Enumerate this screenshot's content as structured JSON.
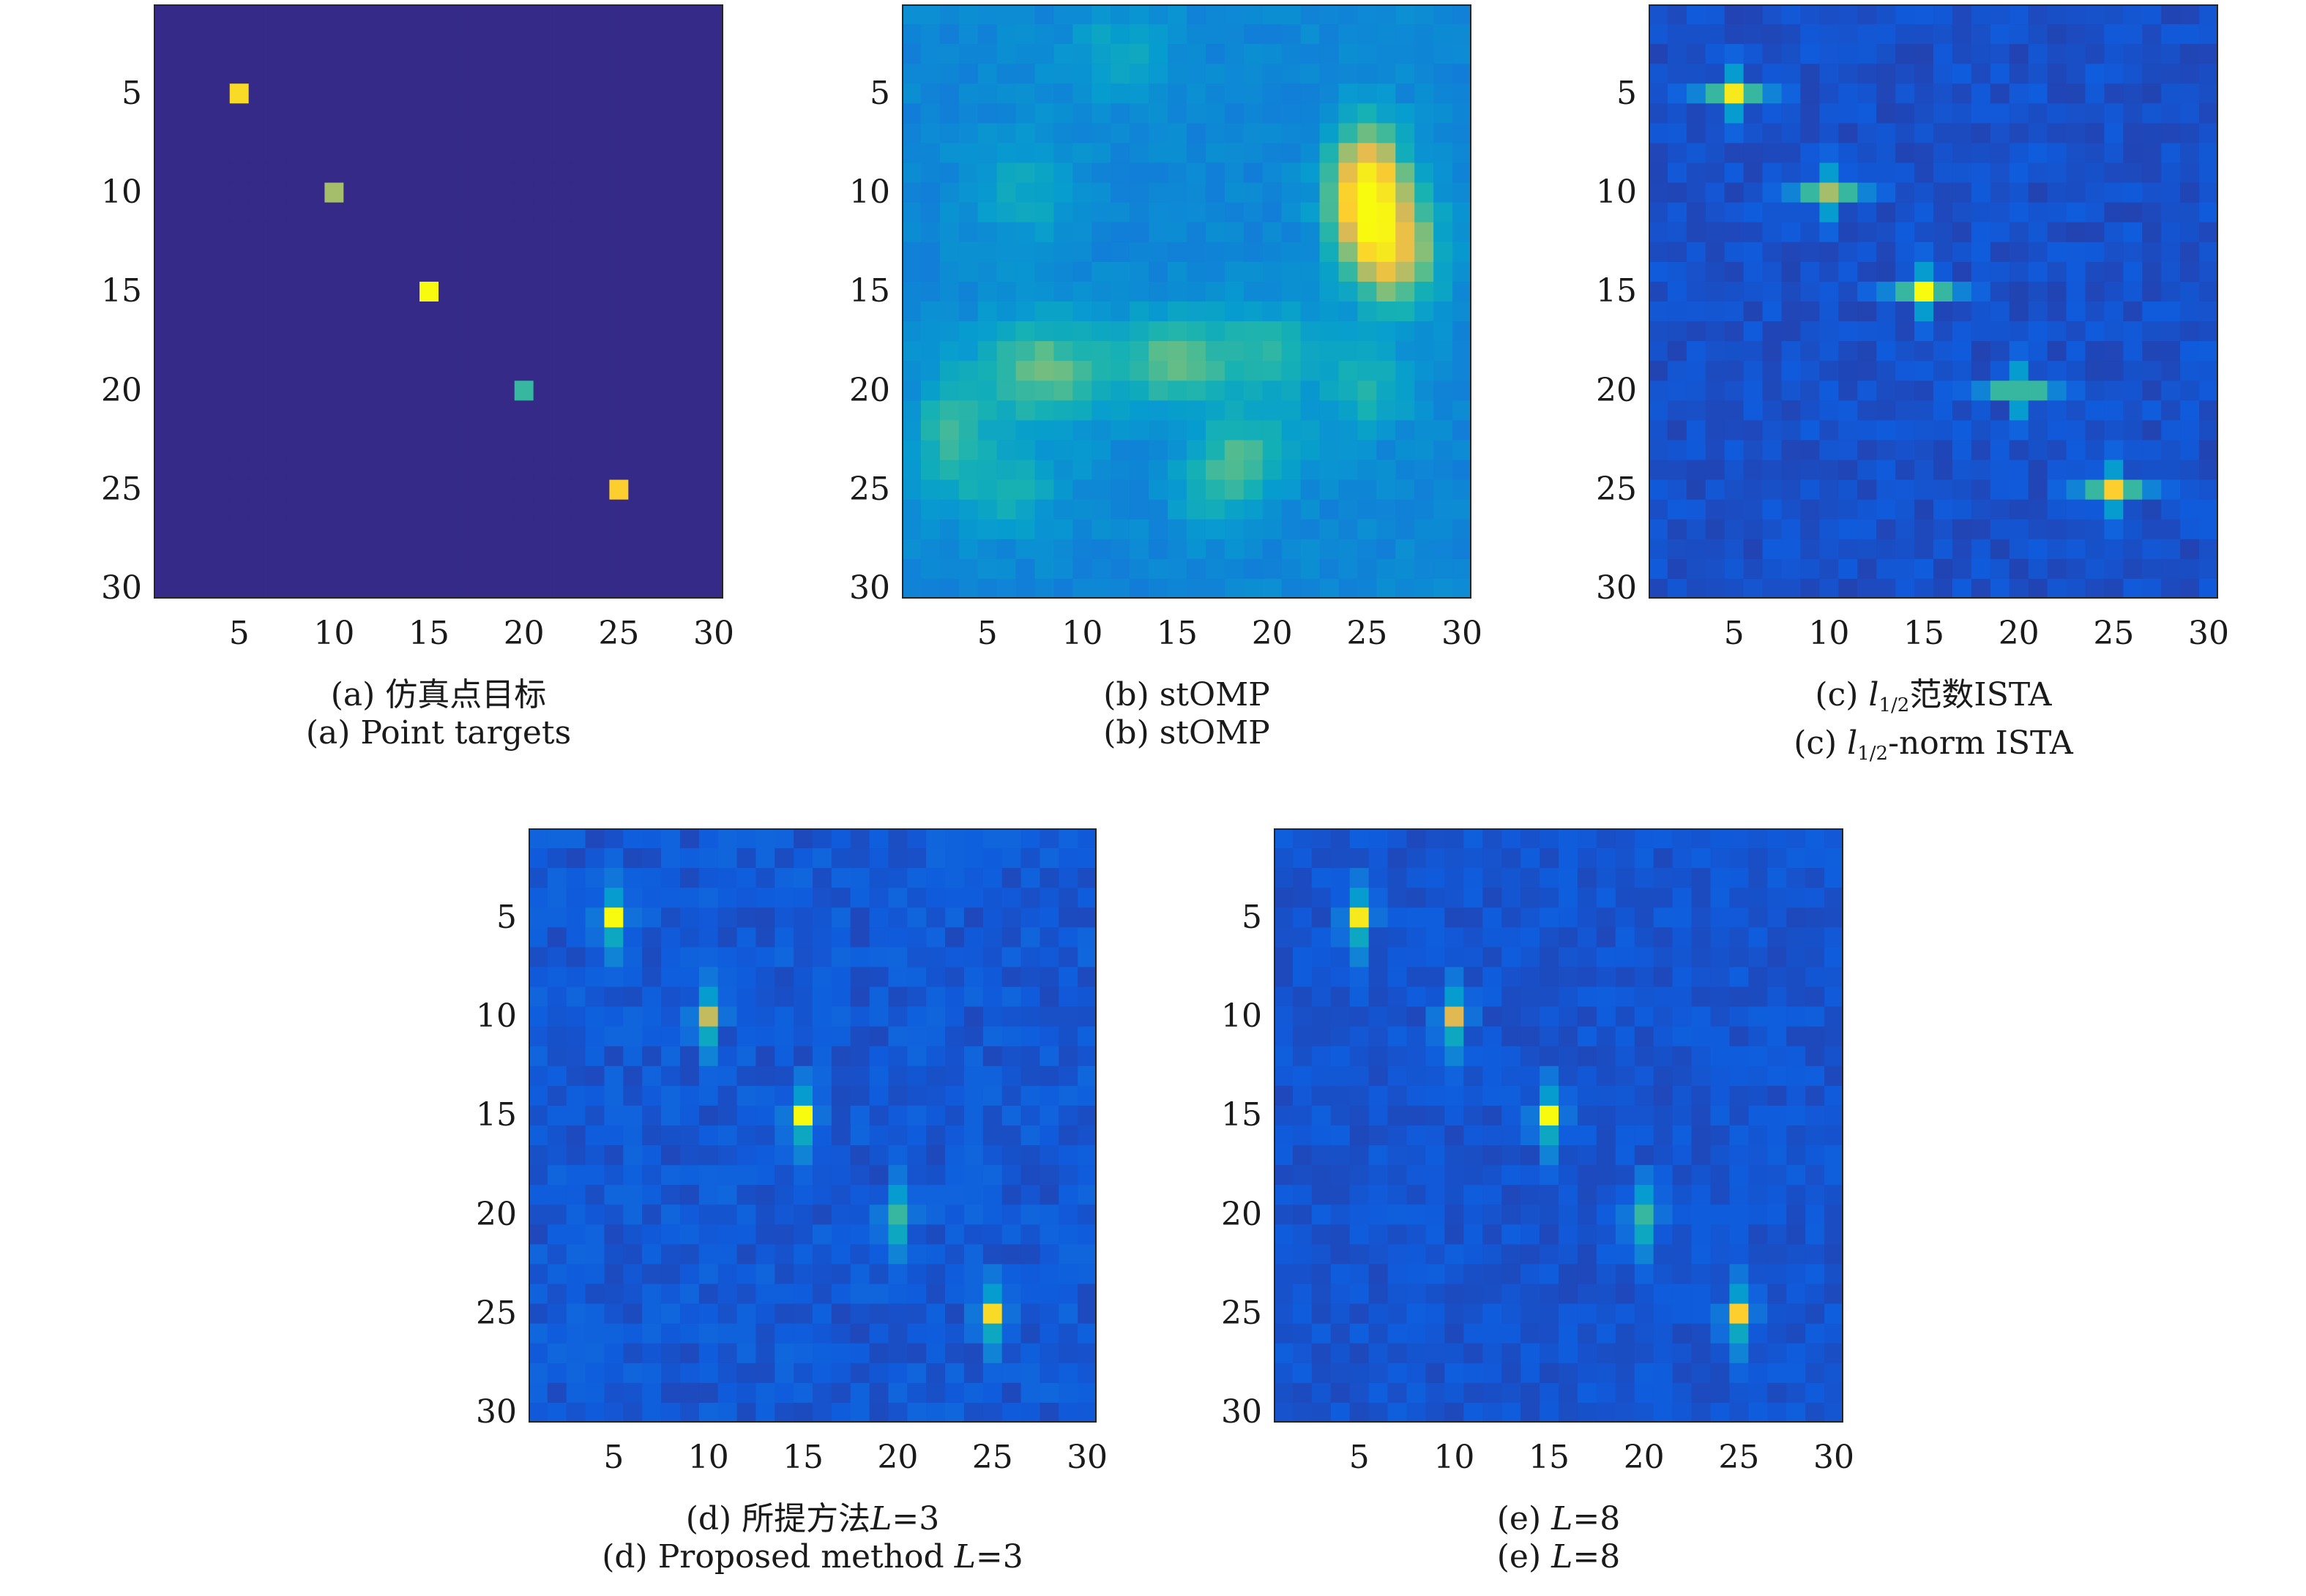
{
  "chart_data": [
    {
      "type": "heatmap",
      "id": "a",
      "caption_cn": "(a) 仿真点目标",
      "caption_en": "(a) Point targets",
      "xticks": [
        5,
        10,
        15,
        20,
        25,
        30
      ],
      "yticks": [
        5,
        10,
        15,
        20,
        25,
        30
      ],
      "xlim": [
        0.5,
        30.5
      ],
      "ylim": [
        0.5,
        30.5
      ],
      "grid": "30x30",
      "background_level": 0.0,
      "noise_level": 0.0,
      "targets": [
        {
          "row": 5,
          "col": 5,
          "value": 0.85
        },
        {
          "row": 10,
          "col": 10,
          "value": 0.6
        },
        {
          "row": 15,
          "col": 15,
          "value": 1.0
        },
        {
          "row": 20,
          "col": 20,
          "value": 0.45
        },
        {
          "row": 25,
          "col": 25,
          "value": 0.8
        }
      ]
    },
    {
      "type": "heatmap",
      "id": "b",
      "caption_cn": "(b) stOMP",
      "caption_en": "(b) stOMP",
      "xticks": [
        5,
        10,
        15,
        20,
        25,
        30
      ],
      "yticks": [
        5,
        10,
        15,
        20,
        25,
        30
      ],
      "xlim": [
        0.5,
        30.5
      ],
      "ylim": [
        0.5,
        30.5
      ],
      "grid": "30x30",
      "background_level": 0.2,
      "noise_level": 0.06,
      "blobs": [
        {
          "row": 10,
          "col": 25,
          "amp": 0.75,
          "sr": 2.2,
          "sc": 1.3
        },
        {
          "row": 13,
          "col": 26.5,
          "amp": 0.45,
          "sr": 2.0,
          "sc": 1.6
        },
        {
          "row": 19,
          "col": 8,
          "amp": 0.28,
          "sr": 2.0,
          "sc": 2.5
        },
        {
          "row": 18.5,
          "col": 15,
          "amp": 0.28,
          "sr": 1.6,
          "sc": 2.0
        },
        {
          "row": 18,
          "col": 20,
          "amp": 0.2,
          "sr": 1.5,
          "sc": 2.0
        },
        {
          "row": 22,
          "col": 3,
          "amp": 0.22,
          "sr": 2.0,
          "sc": 1.3
        },
        {
          "row": 23,
          "col": 19,
          "amp": 0.2,
          "sr": 1.5,
          "sc": 2.0
        },
        {
          "row": 25,
          "col": 6,
          "amp": 0.16,
          "sr": 1.5,
          "sc": 2.0
        },
        {
          "row": 25,
          "col": 17,
          "amp": 0.16,
          "sr": 1.5,
          "sc": 1.5
        },
        {
          "row": 20,
          "col": 25,
          "amp": 0.18,
          "sr": 1.5,
          "sc": 1.5
        },
        {
          "row": 10,
          "col": 7,
          "amp": 0.12,
          "sr": 2.0,
          "sc": 2.0
        },
        {
          "row": 3,
          "col": 12,
          "amp": 0.12,
          "sr": 1.5,
          "sc": 2.0
        }
      ]
    },
    {
      "type": "heatmap",
      "id": "c",
      "caption_cn_parts": [
        "(c) ",
        "l",
        "1/2",
        "范数ISTA"
      ],
      "caption_en_parts": [
        "(c) ",
        "l",
        "1/2",
        "-norm ISTA"
      ],
      "xticks": [
        5,
        10,
        15,
        20,
        25,
        30
      ],
      "yticks": [
        5,
        10,
        15,
        20,
        25,
        30
      ],
      "xlim": [
        0.5,
        30.5
      ],
      "ylim": [
        0.5,
        30.5
      ],
      "grid": "30x30",
      "background_level": 0.05,
      "noise_level": 0.05,
      "crosses": [
        {
          "row": 5,
          "col": 5,
          "value": 0.92
        },
        {
          "row": 10,
          "col": 10,
          "value": 0.6
        },
        {
          "row": 15,
          "col": 15,
          "value": 1.0
        },
        {
          "row": 20,
          "col": 20,
          "value": 0.45
        },
        {
          "row": 25,
          "col": 25,
          "value": 0.8
        }
      ]
    },
    {
      "type": "heatmap",
      "id": "d",
      "caption_cn_parts": [
        "(d) 所提方法",
        "L",
        "=3"
      ],
      "caption_en_parts": [
        "(d) Proposed method ",
        "L",
        "=3"
      ],
      "xticks": [
        5,
        10,
        15,
        20,
        25,
        30
      ],
      "yticks": [
        5,
        10,
        15,
        20,
        25,
        30
      ],
      "xlim": [
        0.5,
        30.5
      ],
      "ylim": [
        0.5,
        30.5
      ],
      "grid": "30x30",
      "background_level": 0.06,
      "noise_level": 0.07,
      "streaks": [
        {
          "row": 5,
          "col": 5,
          "value": 1.0
        },
        {
          "row": 10,
          "col": 10,
          "value": 0.65
        },
        {
          "row": 15,
          "col": 15,
          "value": 1.0
        },
        {
          "row": 20,
          "col": 20,
          "value": 0.45
        },
        {
          "row": 25,
          "col": 25,
          "value": 0.85
        }
      ]
    },
    {
      "type": "heatmap",
      "id": "e",
      "caption_cn_parts": [
        "(e) ",
        "L",
        "=8"
      ],
      "caption_en_parts": [
        "(e) ",
        "L",
        "=8"
      ],
      "xticks": [
        5,
        10,
        15,
        20,
        25,
        30
      ],
      "yticks": [
        5,
        10,
        15,
        20,
        25,
        30
      ],
      "xlim": [
        0.5,
        30.5
      ],
      "ylim": [
        0.5,
        30.5
      ],
      "grid": "30x30",
      "background_level": 0.06,
      "noise_level": 0.05,
      "streaks": [
        {
          "row": 5,
          "col": 5,
          "value": 0.92
        },
        {
          "row": 10,
          "col": 10,
          "value": 0.7
        },
        {
          "row": 15,
          "col": 15,
          "value": 1.0
        },
        {
          "row": 20,
          "col": 20,
          "value": 0.45
        },
        {
          "row": 25,
          "col": 25,
          "value": 0.8
        }
      ]
    }
  ],
  "colormap": "parula"
}
